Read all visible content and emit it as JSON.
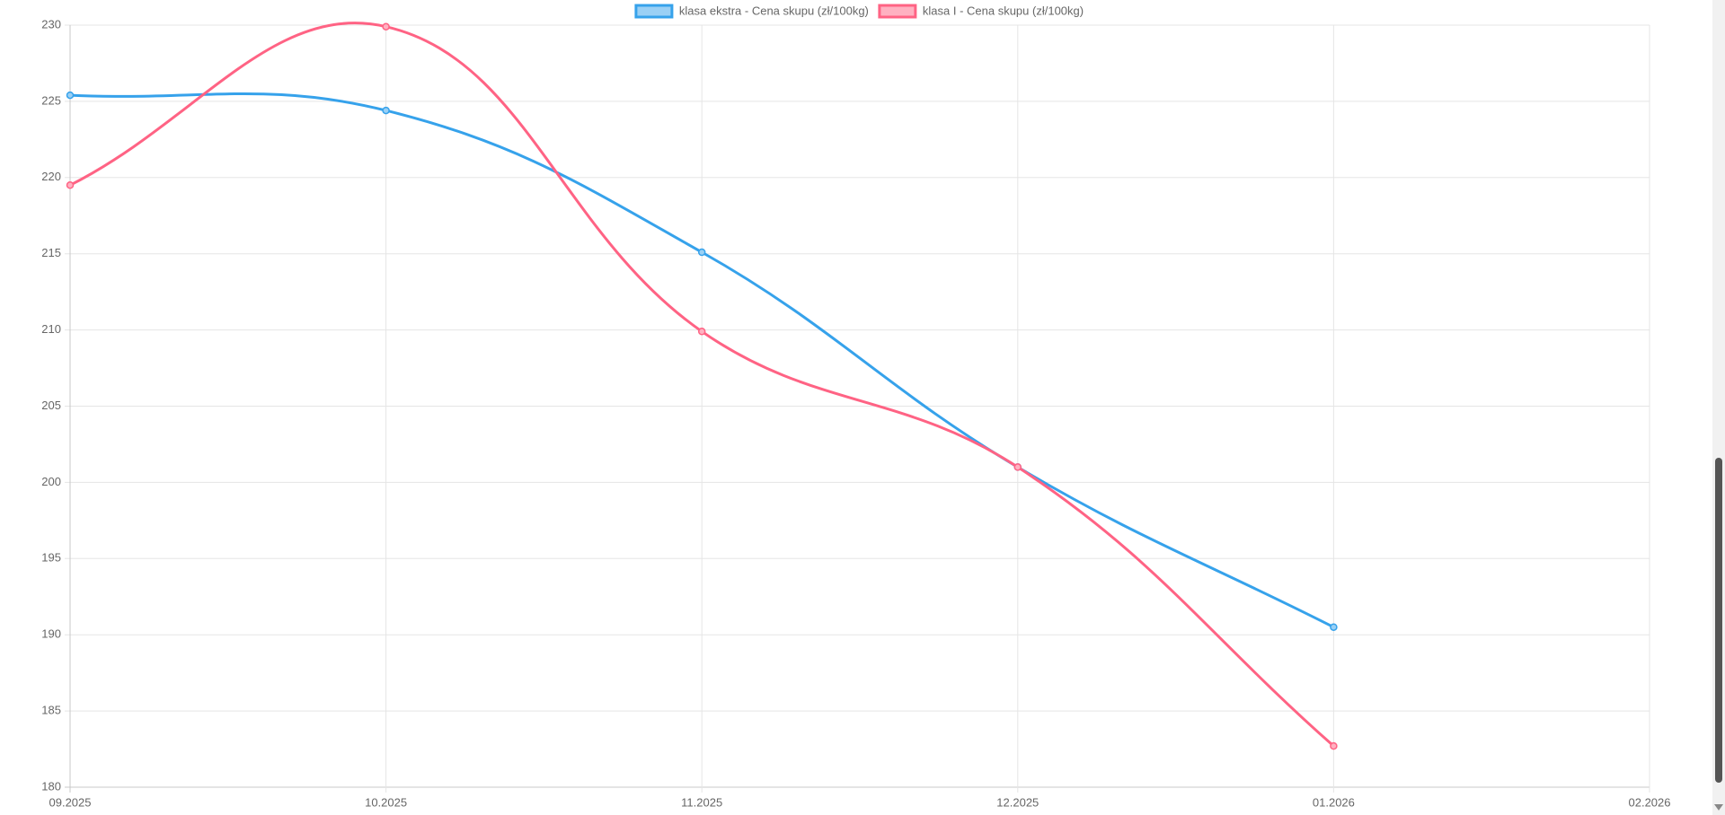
{
  "chart_data": {
    "type": "line",
    "categories": [
      "09.2025",
      "10.2025",
      "11.2025",
      "12.2025",
      "01.2026",
      "02.2026"
    ],
    "series": [
      {
        "name": "klasa ekstra - Cena skupu (zł/100kg)",
        "color": "#36a2eb",
        "fill": "#9ad0f5",
        "values": [
          225.4,
          224.4,
          215.1,
          201.0,
          190.5,
          null
        ]
      },
      {
        "name": "klasa I - Cena skupu (zł/100kg)",
        "color": "#ff6384",
        "fill": "#ffb1c1",
        "values": [
          219.5,
          229.9,
          209.9,
          201.0,
          182.7,
          null
        ]
      }
    ],
    "ylim": [
      180,
      230
    ],
    "yticks": [
      180,
      185,
      190,
      195,
      200,
      205,
      210,
      215,
      220,
      225,
      230
    ],
    "grid": true,
    "legend": "top"
  }
}
